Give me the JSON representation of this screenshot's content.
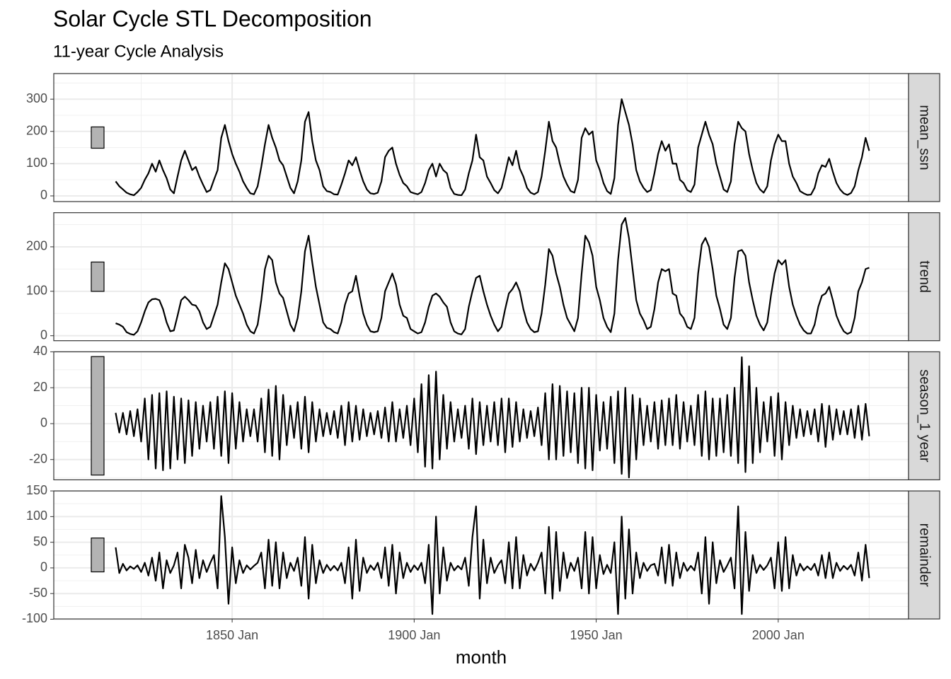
{
  "chart_data": {
    "type": "line",
    "title": "Solar Cycle STL Decomposition",
    "subtitle": "11-year Cycle Analysis",
    "x_label": "month",
    "xlim": [
      1801,
      2035.8
    ],
    "xticks": [
      {
        "value": 1850,
        "label": "1850 Jan"
      },
      {
        "value": 1900,
        "label": "1900 Jan"
      },
      {
        "value": 1950,
        "label": "1950 Jan"
      },
      {
        "value": 2000,
        "label": "2000 Jan"
      }
    ],
    "grid": true,
    "range_bar": 66,
    "x": [
      1818,
      1819,
      1820,
      1821,
      1822,
      1823,
      1824,
      1825,
      1826,
      1827,
      1828,
      1829,
      1830,
      1831,
      1832,
      1833,
      1834,
      1835,
      1836,
      1837,
      1838,
      1839,
      1840,
      1841,
      1842,
      1843,
      1844,
      1845,
      1846,
      1847,
      1848,
      1849,
      1850,
      1851,
      1852,
      1853,
      1854,
      1855,
      1856,
      1857,
      1858,
      1859,
      1860,
      1861,
      1862,
      1863,
      1864,
      1865,
      1866,
      1867,
      1868,
      1869,
      1870,
      1871,
      1872,
      1873,
      1874,
      1875,
      1876,
      1877,
      1878,
      1879,
      1880,
      1881,
      1882,
      1883,
      1884,
      1885,
      1886,
      1887,
      1888,
      1889,
      1890,
      1891,
      1892,
      1893,
      1894,
      1895,
      1896,
      1897,
      1898,
      1899,
      1900,
      1901,
      1902,
      1903,
      1904,
      1905,
      1906,
      1907,
      1908,
      1909,
      1910,
      1911,
      1912,
      1913,
      1914,
      1915,
      1916,
      1917,
      1918,
      1919,
      1920,
      1921,
      1922,
      1923,
      1924,
      1925,
      1926,
      1927,
      1928,
      1929,
      1930,
      1931,
      1932,
      1933,
      1934,
      1935,
      1936,
      1937,
      1938,
      1939,
      1940,
      1941,
      1942,
      1943,
      1944,
      1945,
      1946,
      1947,
      1948,
      1949,
      1950,
      1951,
      1952,
      1953,
      1954,
      1955,
      1956,
      1957,
      1958,
      1959,
      1960,
      1961,
      1962,
      1963,
      1964,
      1965,
      1966,
      1967,
      1968,
      1969,
      1970,
      1971,
      1972,
      1973,
      1974,
      1975,
      1976,
      1977,
      1978,
      1979,
      1980,
      1981,
      1982,
      1983,
      1984,
      1985,
      1986,
      1987,
      1988,
      1989,
      1990,
      1991,
      1992,
      1993,
      1994,
      1995,
      1996,
      1997,
      1998,
      1999,
      2000,
      2001,
      2002,
      2003,
      2004,
      2005,
      2006,
      2007,
      2008,
      2009,
      2010,
      2011,
      2012,
      2013,
      2014,
      2015,
      2016,
      2017,
      2018,
      2019,
      2020,
      2021,
      2022,
      2023,
      2024,
      2025
    ],
    "series": [
      {
        "name": "mean_ssn",
        "color": "#000000",
        "ylim": [
          -17.6,
          379.4
        ],
        "yticks": [
          0,
          100,
          200,
          300
        ],
        "values": [
          45,
          30,
          20,
          10,
          5,
          2,
          12,
          25,
          50,
          70,
          100,
          75,
          110,
          80,
          55,
          20,
          8,
          60,
          110,
          140,
          110,
          80,
          90,
          60,
          35,
          12,
          18,
          50,
          80,
          180,
          220,
          170,
          130,
          100,
          75,
          45,
          25,
          8,
          5,
          30,
          90,
          160,
          220,
          180,
          150,
          110,
          95,
          60,
          25,
          8,
          45,
          110,
          230,
          260,
          170,
          110,
          80,
          30,
          15,
          12,
          5,
          4,
          35,
          70,
          110,
          95,
          120,
          80,
          45,
          20,
          8,
          6,
          10,
          45,
          120,
          140,
          150,
          100,
          65,
          40,
          30,
          12,
          8,
          5,
          12,
          40,
          80,
          100,
          60,
          100,
          80,
          70,
          25,
          6,
          3,
          2,
          20,
          70,
          110,
          190,
          120,
          110,
          60,
          40,
          18,
          8,
          25,
          70,
          120,
          95,
          140,
          85,
          60,
          25,
          10,
          5,
          12,
          60,
          140,
          230,
          170,
          150,
          100,
          60,
          35,
          15,
          10,
          50,
          180,
          210,
          190,
          200,
          110,
          80,
          40,
          15,
          6,
          55,
          220,
          300,
          260,
          220,
          160,
          80,
          45,
          25,
          12,
          18,
          70,
          130,
          170,
          140,
          160,
          100,
          100,
          50,
          40,
          18,
          12,
          35,
          150,
          190,
          230,
          190,
          160,
          100,
          60,
          20,
          12,
          45,
          160,
          230,
          210,
          200,
          130,
          80,
          40,
          20,
          10,
          30,
          110,
          160,
          190,
          170,
          170,
          100,
          60,
          40,
          15,
          8,
          3,
          4,
          25,
          70,
          95,
          90,
          115,
          75,
          40,
          20,
          8,
          3,
          9,
          30,
          80,
          120,
          180,
          140
        ]
      },
      {
        "name": "trend",
        "color": "#000000",
        "ylim": [
          -11.2,
          276.8
        ],
        "yticks": [
          0,
          100,
          200
        ],
        "values": [
          28,
          25,
          20,
          8,
          4,
          2,
          10,
          30,
          55,
          75,
          82,
          83,
          80,
          60,
          30,
          10,
          12,
          45,
          80,
          88,
          80,
          70,
          68,
          55,
          30,
          15,
          20,
          45,
          70,
          120,
          163,
          150,
          120,
          90,
          70,
          50,
          25,
          10,
          5,
          25,
          80,
          150,
          180,
          170,
          120,
          95,
          85,
          55,
          25,
          10,
          40,
          100,
          190,
          225,
          165,
          110,
          70,
          30,
          18,
          15,
          8,
          5,
          30,
          70,
          95,
          100,
          135,
          90,
          50,
          25,
          10,
          8,
          10,
          40,
          100,
          120,
          140,
          115,
          70,
          45,
          40,
          15,
          10,
          5,
          8,
          30,
          65,
          90,
          95,
          88,
          75,
          65,
          30,
          10,
          5,
          3,
          15,
          65,
          100,
          130,
          135,
          100,
          70,
          45,
          25,
          10,
          20,
          60,
          95,
          105,
          120,
          100,
          60,
          30,
          15,
          8,
          10,
          50,
          115,
          195,
          180,
          140,
          110,
          70,
          40,
          25,
          10,
          40,
          140,
          225,
          210,
          180,
          110,
          80,
          40,
          20,
          8,
          50,
          170,
          250,
          265,
          220,
          150,
          80,
          50,
          35,
          15,
          20,
          60,
          120,
          150,
          145,
          150,
          95,
          90,
          50,
          40,
          20,
          15,
          40,
          140,
          205,
          220,
          200,
          150,
          90,
          60,
          25,
          15,
          40,
          130,
          190,
          193,
          180,
          120,
          80,
          45,
          25,
          12,
          30,
          90,
          140,
          170,
          160,
          170,
          110,
          70,
          45,
          25,
          12,
          5,
          5,
          25,
          65,
          90,
          95,
          110,
          80,
          45,
          25,
          10,
          4,
          8,
          40,
          100,
          120,
          150,
          153
        ]
      },
      {
        "name": "season_1 year",
        "color": "#000000",
        "ylim": [
          -31.3,
          40
        ],
        "yticks": [
          -20,
          0,
          20,
          40
        ],
        "values": [
          6,
          -5,
          6,
          -6,
          7,
          -7,
          8,
          -10,
          14,
          -20,
          16,
          -25,
          17,
          -26,
          18,
          -25,
          15,
          -20,
          14,
          -22,
          13,
          -18,
          12,
          -14,
          10,
          -10,
          12,
          -14,
          15,
          -18,
          18,
          -22,
          17,
          -14,
          12,
          -10,
          8,
          -7,
          8,
          -10,
          14,
          -16,
          19,
          -18,
          21,
          -20,
          16,
          -12,
          10,
          -8,
          12,
          -14,
          15,
          -16,
          12,
          -10,
          8,
          -7,
          6,
          -6,
          7,
          -8,
          10,
          -12,
          12,
          -10,
          10,
          -9,
          8,
          -7,
          6,
          -6,
          7,
          -8,
          9,
          -10,
          12,
          -10,
          8,
          -8,
          10,
          -12,
          14,
          -16,
          22,
          -24,
          27,
          -25,
          29,
          -20,
          16,
          -14,
          12,
          -10,
          8,
          -8,
          10,
          -14,
          14,
          -17,
          12,
          -12,
          10,
          -10,
          12,
          -12,
          14,
          -16,
          14,
          -13,
          12,
          -10,
          8,
          -8,
          7,
          -7,
          9,
          -12,
          17,
          -20,
          22,
          -20,
          21,
          -18,
          18,
          -16,
          17,
          -22,
          20,
          -25,
          20,
          -26,
          16,
          -15,
          12,
          -14,
          15,
          -22,
          18,
          -28,
          20,
          -30,
          16,
          -20,
          14,
          -12,
          10,
          -10,
          12,
          -14,
          13,
          -12,
          14,
          -12,
          16,
          -14,
          12,
          -10,
          10,
          -12,
          16,
          -18,
          18,
          -20,
          14,
          -18,
          14,
          -16,
          16,
          -18,
          20,
          -22,
          37,
          -27,
          32,
          -22,
          20,
          -16,
          12,
          -10,
          15,
          -18,
          17,
          -20,
          12,
          -12,
          10,
          -8,
          8,
          -7,
          7,
          -6,
          8,
          -10,
          11,
          -13,
          10,
          -9,
          8,
          -6,
          7,
          -6,
          8,
          -8,
          10,
          -9,
          11,
          -7
        ]
      },
      {
        "name": "remainder",
        "color": "#000000",
        "ylim": [
          -99.5,
          150
        ],
        "yticks": [
          -100,
          -50,
          0,
          50,
          100,
          150
        ],
        "values": [
          40,
          -10,
          8,
          -5,
          3,
          -2,
          5,
          -8,
          10,
          -15,
          20,
          -25,
          30,
          -40,
          15,
          -10,
          5,
          30,
          -40,
          45,
          20,
          -30,
          35,
          -20,
          15,
          -8,
          10,
          25,
          -40,
          140,
          60,
          -70,
          40,
          -30,
          15,
          -10,
          5,
          -3,
          4,
          10,
          30,
          -40,
          55,
          -35,
          50,
          -40,
          30,
          -20,
          10,
          -6,
          20,
          -35,
          60,
          -60,
          45,
          -30,
          15,
          -10,
          6,
          -5,
          4,
          -5,
          10,
          -30,
          40,
          -60,
          55,
          -45,
          20,
          -10,
          5,
          -4,
          10,
          -20,
          40,
          -35,
          45,
          -50,
          30,
          -20,
          10,
          -8,
          5,
          -4,
          10,
          -30,
          45,
          -90,
          100,
          -50,
          40,
          -25,
          10,
          -5,
          4,
          -3,
          20,
          -35,
          60,
          120,
          -60,
          55,
          -30,
          20,
          -10,
          5,
          15,
          -30,
          50,
          -40,
          60,
          -40,
          25,
          -15,
          8,
          -5,
          10,
          30,
          -50,
          80,
          -60,
          70,
          -45,
          30,
          -20,
          10,
          -6,
          20,
          -40,
          70,
          -50,
          60,
          -40,
          25,
          -12,
          6,
          -10,
          50,
          -90,
          100,
          -60,
          75,
          -50,
          30,
          -20,
          10,
          -6,
          5,
          8,
          -15,
          40,
          -30,
          45,
          -35,
          30,
          -20,
          10,
          -6,
          4,
          -5,
          30,
          -50,
          60,
          -70,
          50,
          -30,
          15,
          -8,
          5,
          20,
          -40,
          120,
          -90,
          70,
          -45,
          25,
          -10,
          6,
          -4,
          5,
          20,
          -40,
          50,
          -45,
          60,
          -40,
          25,
          -15,
          8,
          -5,
          3,
          -4,
          8,
          -15,
          25,
          -20,
          30,
          -20,
          10,
          -6,
          4,
          -3,
          6,
          -15,
          30,
          -25,
          45,
          -20
        ]
      }
    ]
  }
}
